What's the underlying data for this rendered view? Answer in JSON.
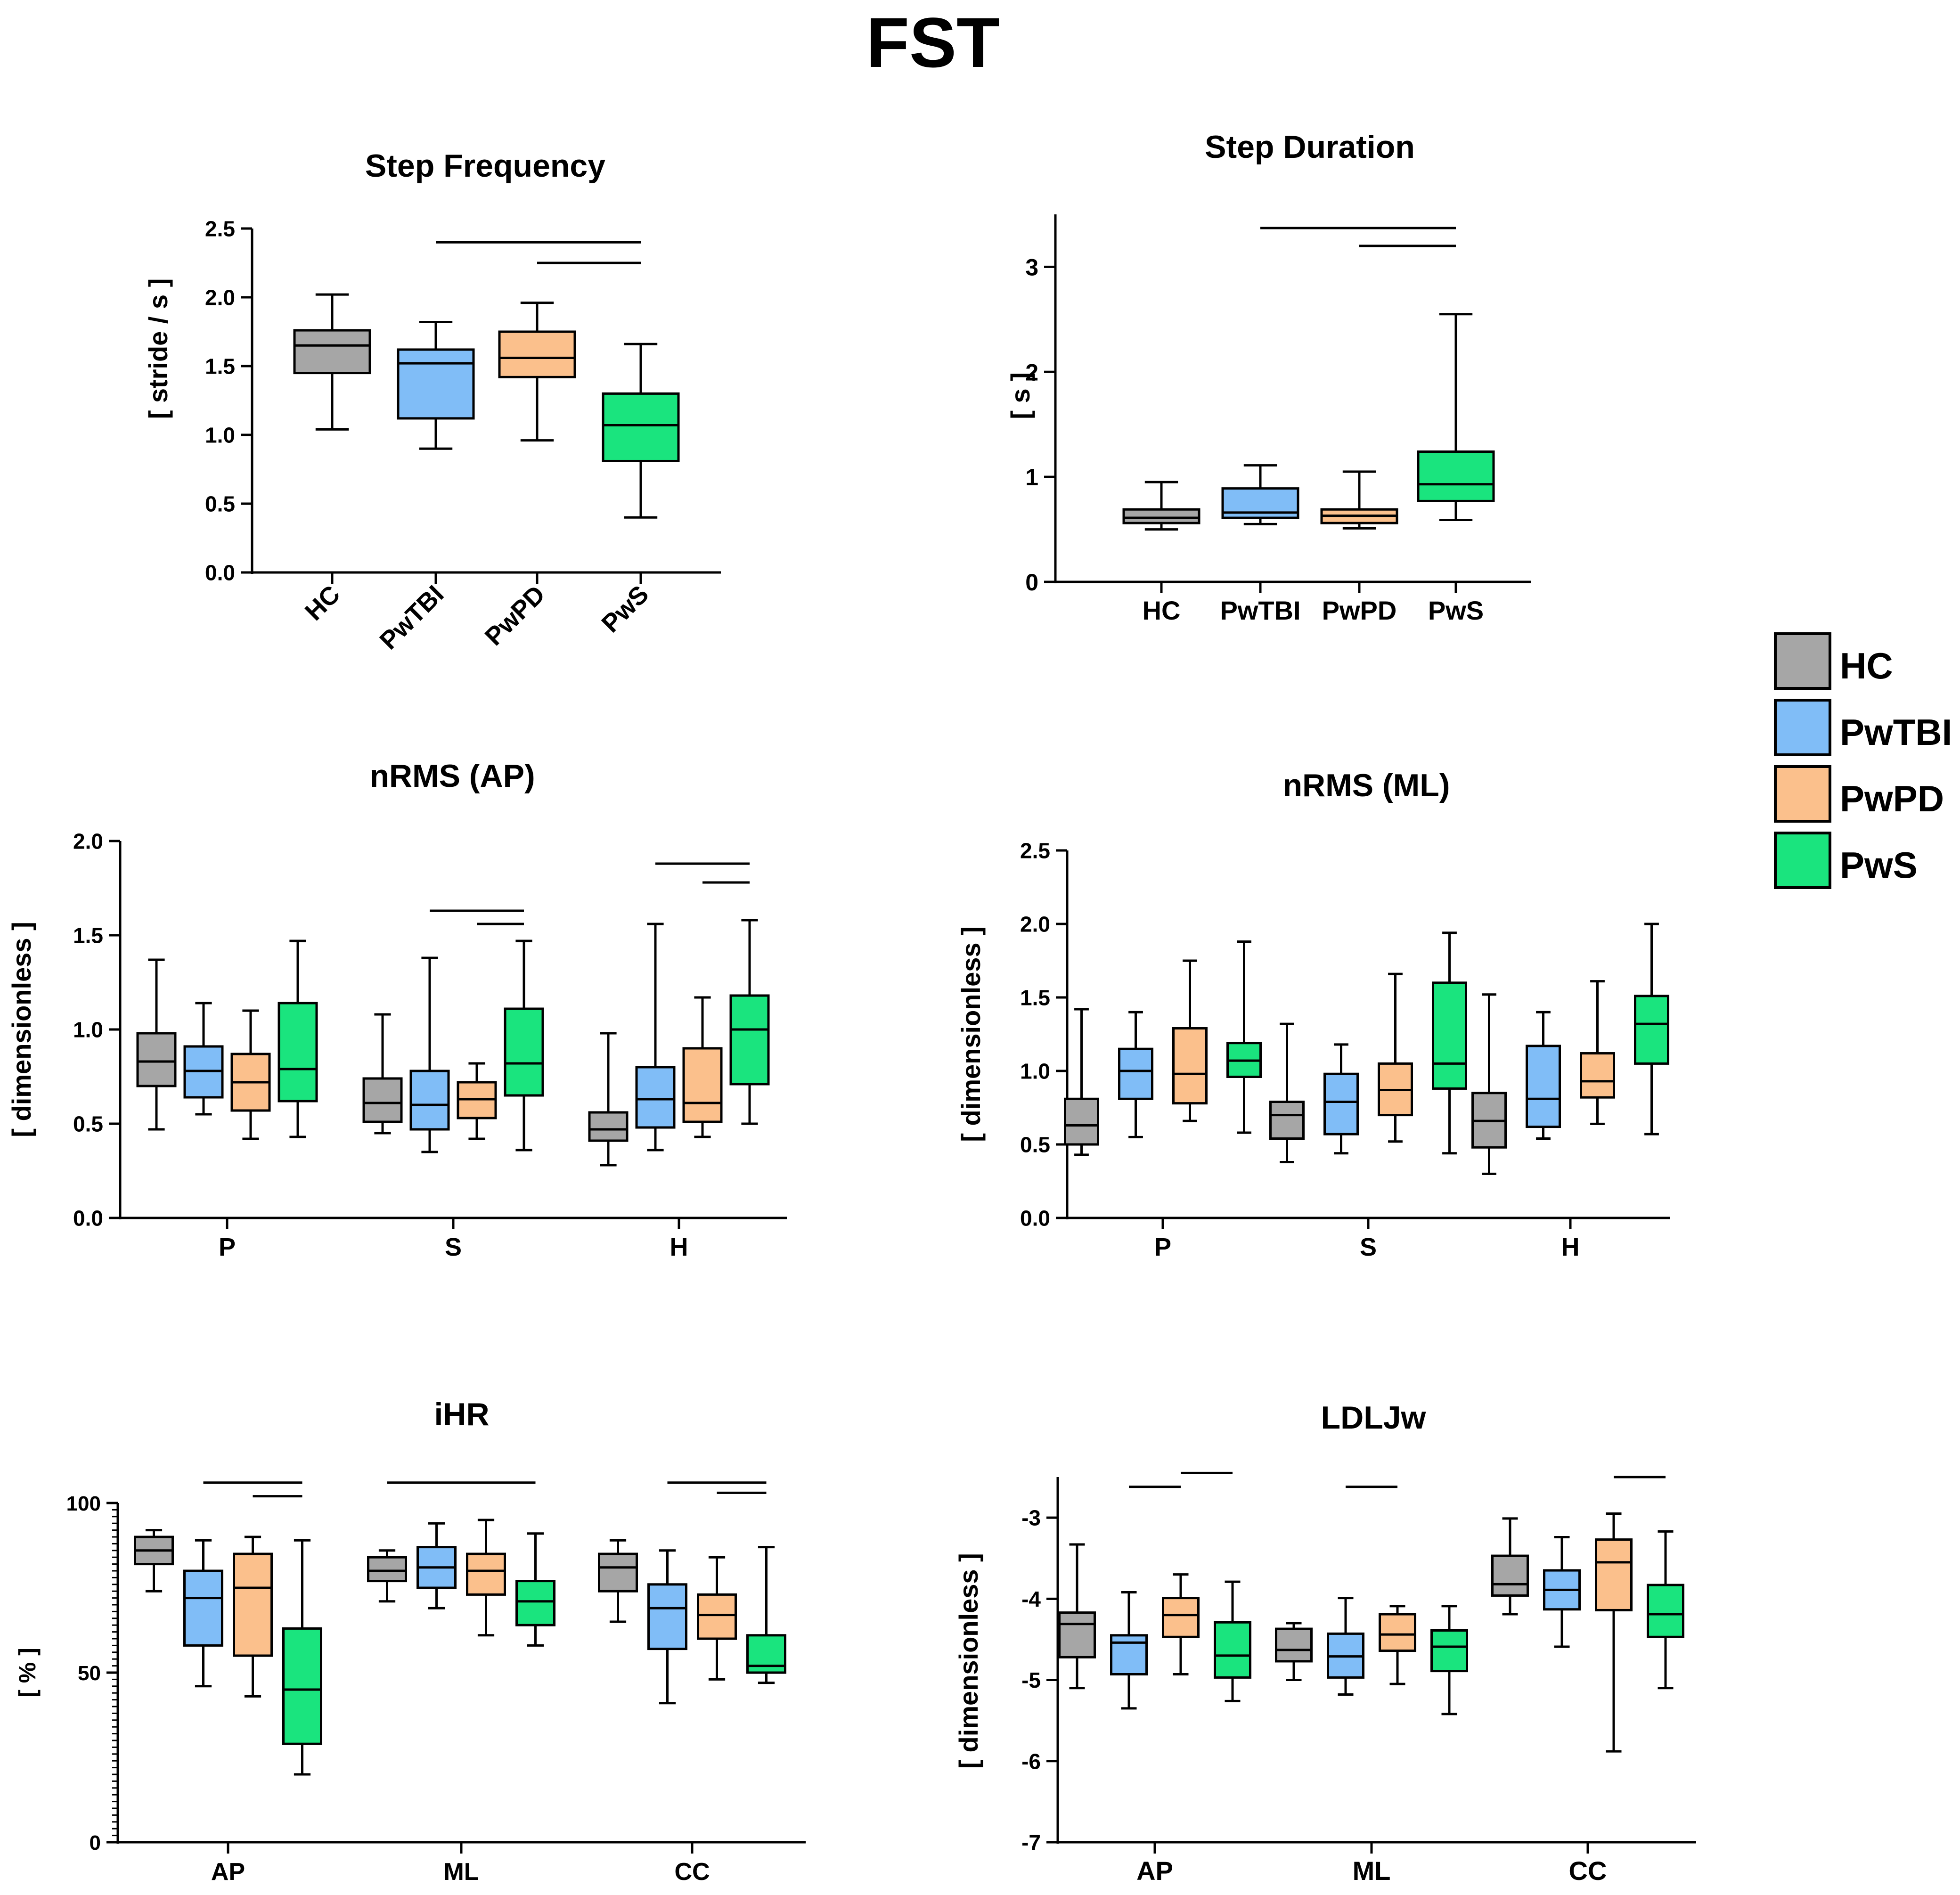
{
  "figure_title": "FST",
  "legend": [
    {
      "label": "HC",
      "color": "#a6a6a6"
    },
    {
      "label": "PwTBI",
      "color": "#80bdf7"
    },
    {
      "label": "PwPD",
      "color": "#fbc08c"
    },
    {
      "label": "PwS",
      "color": "#1ae47e"
    }
  ],
  "chart_data": [
    {
      "type": "boxplot",
      "title": "Step Frequency",
      "ylabel": "[ stride / s ]",
      "ylim": [
        0,
        2.5
      ],
      "yticks": [
        "0.0",
        "0.5",
        "1.0",
        "1.5",
        "2.0",
        "2.5"
      ],
      "ytick_values": [
        0,
        0.5,
        1.0,
        1.5,
        2.0,
        2.5
      ],
      "rotated_xticks": true,
      "groups": [
        "HC",
        "PwTBI",
        "PwPD",
        "PwS"
      ],
      "boxes": [
        {
          "label": "HC",
          "series": 0,
          "min": 1.04,
          "q1": 1.45,
          "median": 1.65,
          "q3": 1.76,
          "max": 2.02
        },
        {
          "label": "PwTBI",
          "series": 1,
          "min": 0.9,
          "q1": 1.12,
          "median": 1.52,
          "q3": 1.62,
          "max": 1.82
        },
        {
          "label": "PwPD",
          "series": 2,
          "min": 0.96,
          "q1": 1.42,
          "median": 1.56,
          "q3": 1.75,
          "max": 1.96
        },
        {
          "label": "PwS",
          "series": 3,
          "min": 0.4,
          "q1": 0.81,
          "median": 1.07,
          "q3": 1.3,
          "max": 1.66
        }
      ],
      "significance": [
        {
          "from": 1,
          "to": 3,
          "y": 2.4
        },
        {
          "from": 2,
          "to": 3,
          "y": 2.25
        }
      ]
    },
    {
      "type": "boxplot",
      "title": "Step Duration",
      "ylabel": "[ s ]",
      "ylim": [
        0,
        3.5
      ],
      "yticks": [
        "0",
        "1",
        "2",
        "3"
      ],
      "ytick_values": [
        0,
        1,
        2,
        3
      ],
      "rotated_xticks": false,
      "groups": [
        "HC",
        "PwTBI",
        "PwPD",
        "PwS"
      ],
      "boxes": [
        {
          "label": "HC",
          "series": 0,
          "min": 0.5,
          "q1": 0.56,
          "median": 0.61,
          "q3": 0.69,
          "max": 0.95
        },
        {
          "label": "PwTBI",
          "series": 1,
          "min": 0.55,
          "q1": 0.61,
          "median": 0.66,
          "q3": 0.89,
          "max": 1.11
        },
        {
          "label": "PwPD",
          "series": 2,
          "min": 0.51,
          "q1": 0.56,
          "median": 0.63,
          "q3": 0.69,
          "max": 1.05
        },
        {
          "label": "PwS",
          "series": 3,
          "min": 0.59,
          "q1": 0.77,
          "median": 0.93,
          "q3": 1.24,
          "max": 2.55
        }
      ],
      "significance": [
        {
          "from": 1,
          "to": 3,
          "y": 3.37
        },
        {
          "from": 2,
          "to": 3,
          "y": 3.2
        }
      ]
    },
    {
      "type": "boxplot",
      "title": "nRMS (AP)",
      "ylabel": "[ dimensionless ]",
      "ylim": [
        0,
        2.0
      ],
      "yticks": [
        "0.0",
        "0.5",
        "1.0",
        "1.5",
        "2.0"
      ],
      "ytick_values": [
        0,
        0.5,
        1.0,
        1.5,
        2.0
      ],
      "rotated_xticks": false,
      "groups": [
        "P",
        "S",
        "H"
      ],
      "boxes": [
        {
          "group": 0,
          "series": 0,
          "min": 0.47,
          "q1": 0.7,
          "median": 0.83,
          "q3": 0.98,
          "max": 1.37
        },
        {
          "group": 0,
          "series": 1,
          "min": 0.55,
          "q1": 0.64,
          "median": 0.78,
          "q3": 0.91,
          "max": 1.14
        },
        {
          "group": 0,
          "series": 2,
          "min": 0.42,
          "q1": 0.57,
          "median": 0.72,
          "q3": 0.87,
          "max": 1.1
        },
        {
          "group": 0,
          "series": 3,
          "min": 0.43,
          "q1": 0.62,
          "median": 0.79,
          "q3": 1.14,
          "max": 1.47
        },
        {
          "group": 1,
          "series": 0,
          "min": 0.45,
          "q1": 0.51,
          "median": 0.61,
          "q3": 0.74,
          "max": 1.08
        },
        {
          "group": 1,
          "series": 1,
          "min": 0.35,
          "q1": 0.47,
          "median": 0.6,
          "q3": 0.78,
          "max": 1.38
        },
        {
          "group": 1,
          "series": 2,
          "min": 0.42,
          "q1": 0.53,
          "median": 0.63,
          "q3": 0.72,
          "max": 0.82
        },
        {
          "group": 1,
          "series": 3,
          "min": 0.36,
          "q1": 0.65,
          "median": 0.82,
          "q3": 1.11,
          "max": 1.47
        },
        {
          "group": 2,
          "series": 0,
          "min": 0.28,
          "q1": 0.41,
          "median": 0.47,
          "q3": 0.56,
          "max": 0.98
        },
        {
          "group": 2,
          "series": 1,
          "min": 0.36,
          "q1": 0.48,
          "median": 0.63,
          "q3": 0.8,
          "max": 1.56
        },
        {
          "group": 2,
          "series": 2,
          "min": 0.43,
          "q1": 0.51,
          "median": 0.61,
          "q3": 0.9,
          "max": 1.17
        },
        {
          "group": 2,
          "series": 3,
          "min": 0.5,
          "q1": 0.71,
          "median": 1.0,
          "q3": 1.18,
          "max": 1.58
        }
      ],
      "significance": [
        {
          "group": 1,
          "from": 1,
          "to": 3,
          "y": 1.63
        },
        {
          "group": 1,
          "from": 2,
          "to": 3,
          "y": 1.56
        },
        {
          "group": 2,
          "from": 1,
          "to": 3,
          "y": 1.88
        },
        {
          "group": 2,
          "from": 2,
          "to": 3,
          "y": 1.78
        }
      ]
    },
    {
      "type": "boxplot",
      "title": "nRMS (ML)",
      "ylabel": "[ dimensionless ]",
      "ylim": [
        0,
        2.5
      ],
      "yticks": [
        "0.0",
        "0.5",
        "1.0",
        "1.5",
        "2.0",
        "2.5"
      ],
      "ytick_values": [
        0,
        0.5,
        1.0,
        1.5,
        2.0,
        2.5
      ],
      "rotated_xticks": false,
      "groups": [
        "P",
        "S",
        "H"
      ],
      "boxes": [
        {
          "group": 0,
          "series": 0,
          "min": 0.43,
          "q1": 0.5,
          "median": 0.63,
          "q3": 0.81,
          "max": 1.42
        },
        {
          "group": 0,
          "series": 1,
          "min": 0.55,
          "q1": 0.81,
          "median": 1.0,
          "q3": 1.15,
          "max": 1.4
        },
        {
          "group": 0,
          "series": 2,
          "min": 0.66,
          "q1": 0.78,
          "median": 0.98,
          "q3": 1.29,
          "max": 1.75
        },
        {
          "group": 0,
          "series": 3,
          "min": 0.58,
          "q1": 0.96,
          "median": 1.07,
          "q3": 1.19,
          "max": 1.88
        },
        {
          "group": 1,
          "series": 0,
          "min": 0.38,
          "q1": 0.54,
          "median": 0.7,
          "q3": 0.79,
          "max": 1.32
        },
        {
          "group": 1,
          "series": 1,
          "min": 0.44,
          "q1": 0.57,
          "median": 0.79,
          "q3": 0.98,
          "max": 1.18
        },
        {
          "group": 1,
          "series": 2,
          "min": 0.52,
          "q1": 0.7,
          "median": 0.87,
          "q3": 1.05,
          "max": 1.66
        },
        {
          "group": 1,
          "series": 3,
          "min": 0.44,
          "q1": 0.88,
          "median": 1.05,
          "q3": 1.6,
          "max": 1.94
        },
        {
          "group": 2,
          "series": 0,
          "min": 0.3,
          "q1": 0.48,
          "median": 0.66,
          "q3": 0.85,
          "max": 1.52
        },
        {
          "group": 2,
          "series": 1,
          "min": 0.54,
          "q1": 0.62,
          "median": 0.81,
          "q3": 1.17,
          "max": 1.4
        },
        {
          "group": 2,
          "series": 2,
          "min": 0.64,
          "q1": 0.82,
          "median": 0.93,
          "q3": 1.12,
          "max": 1.61
        },
        {
          "group": 2,
          "series": 3,
          "min": 0.57,
          "q1": 1.05,
          "median": 1.32,
          "q3": 1.51,
          "max": 2.0
        }
      ],
      "significance": []
    },
    {
      "type": "boxplot",
      "title": "iHR",
      "ylabel": "[ % ]",
      "ylim": [
        0,
        100
      ],
      "yticks": [
        "0",
        "50",
        "100"
      ],
      "ytick_values": [
        0,
        50,
        100
      ],
      "minor_ticks": 2,
      "rotated_xticks": false,
      "groups": [
        "AP",
        "ML",
        "CC"
      ],
      "boxes": [
        {
          "group": 0,
          "series": 0,
          "min": 74,
          "q1": 82,
          "median": 86,
          "q3": 90,
          "max": 92
        },
        {
          "group": 0,
          "series": 1,
          "min": 46,
          "q1": 58,
          "median": 72,
          "q3": 80,
          "max": 89
        },
        {
          "group": 0,
          "series": 2,
          "min": 43,
          "q1": 55,
          "median": 75,
          "q3": 85,
          "max": 90
        },
        {
          "group": 0,
          "series": 3,
          "min": 20,
          "q1": 29,
          "median": 45,
          "q3": 63,
          "max": 89
        },
        {
          "group": 1,
          "series": 0,
          "min": 71,
          "q1": 77,
          "median": 80,
          "q3": 84,
          "max": 86
        },
        {
          "group": 1,
          "series": 1,
          "min": 69,
          "q1": 75,
          "median": 81,
          "q3": 87,
          "max": 94
        },
        {
          "group": 1,
          "series": 2,
          "min": 61,
          "q1": 73,
          "median": 80,
          "q3": 85,
          "max": 95
        },
        {
          "group": 1,
          "series": 3,
          "min": 58,
          "q1": 64,
          "median": 71,
          "q3": 77,
          "max": 91
        },
        {
          "group": 2,
          "series": 0,
          "min": 65,
          "q1": 74,
          "median": 81,
          "q3": 85,
          "max": 89
        },
        {
          "group": 2,
          "series": 1,
          "min": 41,
          "q1": 57,
          "median": 69,
          "q3": 76,
          "max": 86
        },
        {
          "group": 2,
          "series": 2,
          "min": 48,
          "q1": 60,
          "median": 67,
          "q3": 73,
          "max": 84
        },
        {
          "group": 2,
          "series": 3,
          "min": 47,
          "q1": 50,
          "median": 52,
          "q3": 61,
          "max": 87
        }
      ],
      "significance": [
        {
          "group": 0,
          "from": 1,
          "to": 3,
          "y": 106
        },
        {
          "group": 0,
          "from": 2,
          "to": 3,
          "y": 102
        },
        {
          "group": 1,
          "from": 0,
          "to": 3,
          "y": 106
        },
        {
          "group": 2,
          "from": 1,
          "to": 3,
          "y": 106
        },
        {
          "group": 2,
          "from": 2,
          "to": 3,
          "y": 103
        }
      ]
    },
    {
      "type": "boxplot",
      "title": "LDLJw",
      "ylabel": "[ dimensionless ]",
      "ylim": [
        -7,
        -2.5
      ],
      "yticks": [
        "-7",
        "-6",
        "-5",
        "-4",
        "-3"
      ],
      "ytick_values": [
        -7,
        -6,
        -5,
        -4,
        -3
      ],
      "rotated_xticks": false,
      "groups": [
        "AP",
        "ML",
        "CC"
      ],
      "boxes": [
        {
          "group": 0,
          "series": 0,
          "min": -5.1,
          "q1": -4.72,
          "median": -4.31,
          "q3": -4.17,
          "max": -3.33
        },
        {
          "group": 0,
          "series": 1,
          "min": -5.35,
          "q1": -4.93,
          "median": -4.54,
          "q3": -4.45,
          "max": -3.92
        },
        {
          "group": 0,
          "series": 2,
          "min": -4.93,
          "q1": -4.47,
          "median": -4.2,
          "q3": -3.99,
          "max": -3.7
        },
        {
          "group": 0,
          "series": 3,
          "min": -5.26,
          "q1": -4.97,
          "median": -4.7,
          "q3": -4.29,
          "max": -3.79
        },
        {
          "group": 1,
          "series": 0,
          "min": -5.0,
          "q1": -4.77,
          "median": -4.63,
          "q3": -4.37,
          "max": -4.3
        },
        {
          "group": 1,
          "series": 1,
          "min": -5.18,
          "q1": -4.97,
          "median": -4.71,
          "q3": -4.43,
          "max": -3.99
        },
        {
          "group": 1,
          "series": 2,
          "min": -5.05,
          "q1": -4.64,
          "median": -4.44,
          "q3": -4.19,
          "max": -4.09
        },
        {
          "group": 1,
          "series": 3,
          "min": -5.42,
          "q1": -4.89,
          "median": -4.59,
          "q3": -4.39,
          "max": -4.09
        },
        {
          "group": 2,
          "series": 0,
          "min": -4.19,
          "q1": -3.96,
          "median": -3.82,
          "q3": -3.47,
          "max": -3.01
        },
        {
          "group": 2,
          "series": 1,
          "min": -4.59,
          "q1": -4.13,
          "median": -3.89,
          "q3": -3.65,
          "max": -3.24
        },
        {
          "group": 2,
          "series": 2,
          "min": -5.88,
          "q1": -4.14,
          "median": -3.55,
          "q3": -3.27,
          "max": -2.95
        },
        {
          "group": 2,
          "series": 3,
          "min": -5.1,
          "q1": -4.47,
          "median": -4.19,
          "q3": -3.83,
          "max": -3.17
        }
      ],
      "significance": [
        {
          "group": 0,
          "from": 1,
          "to": 2,
          "y": -2.62
        },
        {
          "group": 0,
          "from": 2,
          "to": 3,
          "y": -2.45
        },
        {
          "group": 1,
          "from": 1,
          "to": 2,
          "y": -2.62
        },
        {
          "group": 2,
          "from": 2,
          "to": 3,
          "y": -2.5
        }
      ]
    }
  ]
}
